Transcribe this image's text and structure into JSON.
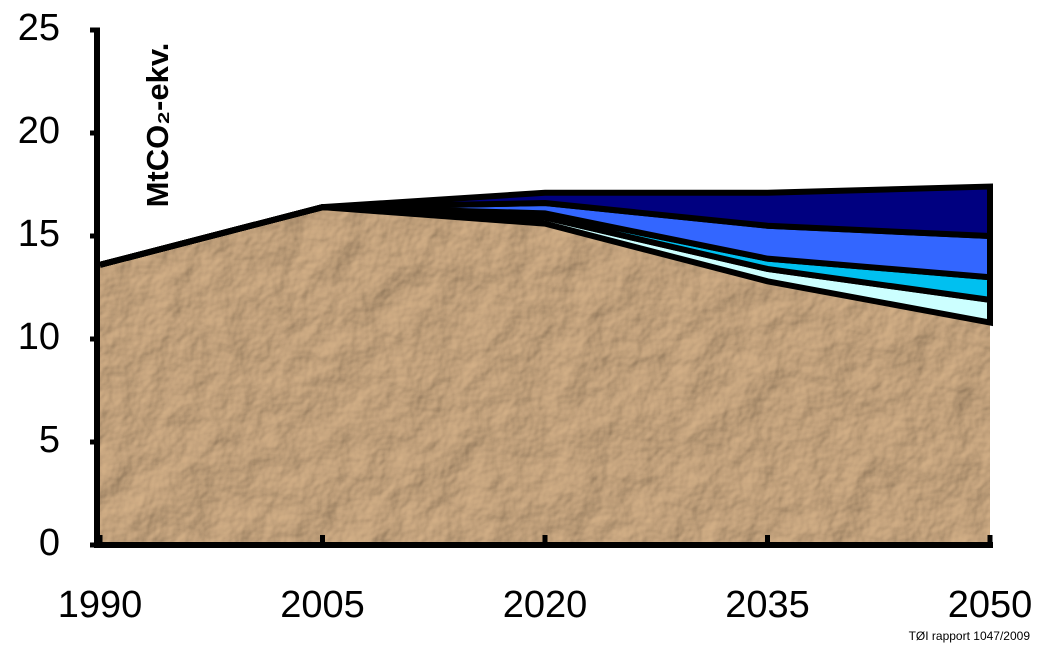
{
  "chart_data": {
    "type": "stacked_area",
    "y_label": "MtCO₂-ekv.",
    "note": "TØI rapport 1047/2009",
    "x": [
      1990,
      2005,
      2020,
      2035,
      2050
    ],
    "xlim": [
      1990,
      2050
    ],
    "xticks": [
      1990,
      2005,
      2020,
      2035,
      2050
    ],
    "ylim": [
      0,
      25
    ],
    "yticks": [
      0,
      5,
      10,
      15,
      20,
      25
    ],
    "series": [
      {
        "color": "#b8916a",
        "values": [
          13.6,
          16.4,
          15.6,
          12.8,
          10.8
        ]
      },
      {
        "color": "#ccffff",
        "values": [
          0,
          0,
          0.3,
          0.6,
          1.1
        ]
      },
      {
        "color": "#00c0f0",
        "values": [
          0,
          0,
          0.2,
          0.5,
          1.1
        ]
      },
      {
        "color": "#3366ff",
        "values": [
          0,
          0,
          0.5,
          1.6,
          2.0
        ]
      },
      {
        "color": "#000080",
        "values": [
          0,
          0,
          0.5,
          1.6,
          2.4
        ]
      }
    ]
  }
}
